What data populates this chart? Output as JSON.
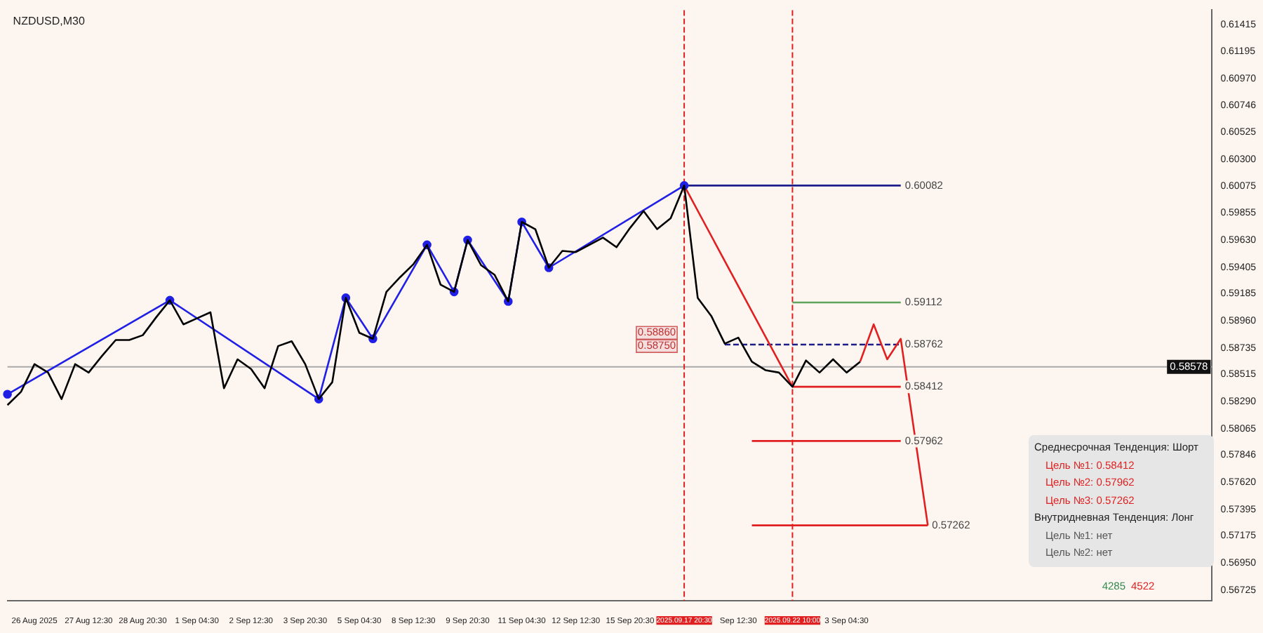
{
  "chart_data": {
    "type": "line",
    "title": "NZDUSD,M30",
    "categories": [
      null,
      null,
      "26 Aug 2025",
      null,
      null,
      null,
      "27 Aug 12:30",
      null,
      null,
      null,
      "28 Aug 20:30",
      null,
      null,
      null,
      "1 Sep 04:30",
      null,
      null,
      null,
      "2 Sep 12:30",
      null,
      null,
      null,
      "3 Sep 20:30",
      null,
      null,
      null,
      "5 Sep 04:30",
      null,
      null,
      null,
      "8 Sep 12:30",
      null,
      null,
      null,
      "9 Sep 20:30",
      null,
      null,
      null,
      "11 Sep 04:30",
      null,
      null,
      null,
      "12 Sep 12:30",
      null,
      null,
      null,
      "15 Sep 20:30",
      null,
      null,
      null,
      "2025.09.17 20:30",
      null,
      null,
      null,
      "Sep 12:30",
      null,
      null,
      null,
      "2025.09.22 10:00",
      null,
      null,
      null,
      "3 Sep 04:30",
      null,
      null,
      null,
      null,
      null,
      null,
      null,
      null,
      null,
      null,
      null,
      null,
      null,
      null,
      null,
      null,
      null,
      null,
      null,
      null,
      null,
      null,
      null,
      null,
      null,
      null,
      null
    ],
    "series": [
      {
        "color": "#000000",
        "values": [
          0.5826,
          0.5837,
          0.586,
          0.5853,
          0.5831,
          0.586,
          0.5853,
          0.5867,
          0.588,
          0.588,
          0.5884,
          0.5899,
          0.5913,
          0.5893,
          0.5898,
          0.5903,
          0.584,
          0.5864,
          0.5856,
          0.584,
          0.5875,
          0.5879,
          0.586,
          0.5831,
          0.5845,
          0.5915,
          0.5886,
          0.5881,
          0.592,
          0.5932,
          0.5943,
          0.5959,
          0.5926,
          0.592,
          0.5963,
          0.5942,
          0.5934,
          0.5912,
          0.5978,
          0.5972,
          0.594,
          0.5954,
          0.5953,
          0.5959,
          0.5965,
          0.5957,
          0.5973,
          0.5987,
          0.5972,
          0.5981,
          0.60082,
          0.5915,
          0.59,
          0.5877,
          0.5882,
          0.5862,
          0.5855,
          0.5853,
          0.58412,
          0.5863,
          0.5853,
          0.5864,
          0.5853,
          0.5862,
          null,
          null,
          null,
          null,
          null,
          null,
          null,
          null,
          null,
          null,
          null,
          null,
          null,
          null,
          null,
          null,
          null,
          null,
          null,
          null,
          null,
          null,
          null,
          null,
          null,
          null
        ]
      },
      {
        "color": "#1f1fe6",
        "marker": "circle",
        "values": [
          0.5835,
          null,
          null,
          null,
          null,
          null,
          null,
          null,
          null,
          null,
          null,
          null,
          0.5913,
          null,
          null,
          null,
          null,
          null,
          null,
          null,
          null,
          null,
          null,
          0.5831,
          null,
          0.5915,
          null,
          0.5881,
          null,
          null,
          null,
          0.5959,
          null,
          0.592,
          0.5963,
          null,
          null,
          0.5912,
          0.5978,
          null,
          0.594,
          null,
          null,
          null,
          null,
          null,
          null,
          null,
          null,
          null,
          0.60082,
          null,
          null,
          null,
          null,
          null,
          null,
          null,
          null,
          null,
          null,
          null,
          null,
          null,
          null,
          null,
          null,
          null,
          null,
          null,
          null,
          null,
          null,
          null,
          null,
          null,
          null,
          null,
          null,
          null,
          null,
          null,
          null,
          null,
          null,
          null,
          null,
          null,
          null,
          null
        ]
      },
      {
        "color": "#e02020",
        "values": [
          null,
          null,
          null,
          null,
          null,
          null,
          null,
          null,
          null,
          null,
          null,
          null,
          null,
          null,
          null,
          null,
          null,
          null,
          null,
          null,
          null,
          null,
          null,
          null,
          null,
          null,
          null,
          null,
          null,
          null,
          null,
          null,
          null,
          null,
          null,
          null,
          null,
          null,
          null,
          null,
          null,
          null,
          null,
          null,
          null,
          null,
          null,
          null,
          null,
          null,
          0.60082,
          null,
          null,
          null,
          null,
          null,
          null,
          null,
          0.58412,
          null,
          null,
          null,
          null,
          null,
          null,
          null,
          null,
          null,
          null,
          null,
          null,
          null,
          null,
          null,
          null,
          null,
          null,
          null,
          null,
          null,
          null,
          null,
          null,
          null,
          null,
          null,
          null,
          null,
          null,
          null
        ]
      },
      {
        "color": "#e02020",
        "values": [
          null,
          null,
          null,
          null,
          null,
          null,
          null,
          null,
          null,
          null,
          null,
          null,
          null,
          null,
          null,
          null,
          null,
          null,
          null,
          null,
          null,
          null,
          null,
          null,
          null,
          null,
          null,
          null,
          null,
          null,
          null,
          null,
          null,
          null,
          null,
          null,
          null,
          null,
          null,
          null,
          null,
          null,
          null,
          null,
          null,
          null,
          null,
          null,
          null,
          null,
          null,
          null,
          null,
          null,
          null,
          null,
          null,
          null,
          null,
          null,
          null,
          null,
          null,
          0.5862,
          0.5893,
          0.5864,
          0.5881,
          null,
          0.57262,
          null,
          null,
          null,
          null,
          null,
          null,
          null,
          null,
          null,
          null,
          null,
          null,
          null,
          null,
          null,
          null,
          null,
          null,
          null,
          null,
          null
        ]
      },
      {
        "color": "#1c1c8c",
        "values": [
          null,
          null,
          null,
          null,
          null,
          null,
          null,
          null,
          null,
          null,
          null,
          null,
          null,
          null,
          null,
          null,
          null,
          null,
          null,
          null,
          null,
          null,
          null,
          null,
          null,
          null,
          null,
          null,
          null,
          null,
          null,
          null,
          null,
          null,
          null,
          null,
          null,
          null,
          null,
          null,
          null,
          null,
          null,
          null,
          null,
          null,
          null,
          null,
          null,
          null,
          0.60082,
          null,
          null,
          null,
          null,
          null,
          null,
          null,
          null,
          null,
          null,
          null,
          null,
          null,
          null,
          null,
          0.60082,
          null,
          null,
          null,
          null,
          null,
          null,
          null,
          null,
          null,
          null,
          null,
          null,
          null,
          null,
          null,
          null,
          null,
          null,
          null,
          null,
          null,
          null,
          null
        ]
      },
      {
        "color": "#5fa35f",
        "values": [
          null,
          null,
          null,
          null,
          null,
          null,
          null,
          null,
          null,
          null,
          null,
          null,
          null,
          null,
          null,
          null,
          null,
          null,
          null,
          null,
          null,
          null,
          null,
          null,
          null,
          null,
          null,
          null,
          null,
          null,
          null,
          null,
          null,
          null,
          null,
          null,
          null,
          null,
          null,
          null,
          null,
          null,
          null,
          null,
          null,
          null,
          null,
          null,
          null,
          null,
          null,
          null,
          null,
          null,
          null,
          null,
          null,
          null,
          0.59112,
          null,
          null,
          null,
          null,
          null,
          null,
          null,
          0.59112,
          null,
          null,
          null,
          null,
          null,
          null,
          null,
          null,
          null,
          null,
          null,
          null,
          null,
          null,
          null,
          null,
          null,
          null,
          null,
          null,
          null,
          null,
          null
        ]
      },
      {
        "color": "#1c1c8c",
        "line_style": "dashed",
        "values": [
          null,
          null,
          null,
          null,
          null,
          null,
          null,
          null,
          null,
          null,
          null,
          null,
          null,
          null,
          null,
          null,
          null,
          null,
          null,
          null,
          null,
          null,
          null,
          null,
          null,
          null,
          null,
          null,
          null,
          null,
          null,
          null,
          null,
          null,
          null,
          null,
          null,
          null,
          null,
          null,
          null,
          null,
          null,
          null,
          null,
          null,
          null,
          null,
          null,
          null,
          null,
          null,
          null,
          0.58762,
          null,
          null,
          null,
          null,
          null,
          null,
          null,
          null,
          null,
          null,
          null,
          null,
          0.58762,
          null,
          null,
          null,
          null,
          null,
          null,
          null,
          null,
          null,
          null,
          null,
          null,
          null,
          null,
          null,
          null,
          null,
          null,
          null,
          null,
          null,
          null,
          null
        ]
      },
      {
        "color": "#e02020",
        "values": [
          null,
          null,
          null,
          null,
          null,
          null,
          null,
          null,
          null,
          null,
          null,
          null,
          null,
          null,
          null,
          null,
          null,
          null,
          null,
          null,
          null,
          null,
          null,
          null,
          null,
          null,
          null,
          null,
          null,
          null,
          null,
          null,
          null,
          null,
          null,
          null,
          null,
          null,
          null,
          null,
          null,
          null,
          null,
          null,
          null,
          null,
          null,
          null,
          null,
          null,
          null,
          null,
          null,
          null,
          null,
          null,
          null,
          null,
          0.58412,
          null,
          null,
          null,
          null,
          null,
          null,
          null,
          0.58412,
          null,
          null,
          null,
          null,
          null,
          null,
          null,
          null,
          null,
          null,
          null,
          null,
          null,
          null,
          null,
          null,
          null,
          null,
          null,
          null,
          null,
          null,
          null
        ]
      },
      {
        "color": "#e02020",
        "values": [
          null,
          null,
          null,
          null,
          null,
          null,
          null,
          null,
          null,
          null,
          null,
          null,
          null,
          null,
          null,
          null,
          null,
          null,
          null,
          null,
          null,
          null,
          null,
          null,
          null,
          null,
          null,
          null,
          null,
          null,
          null,
          null,
          null,
          null,
          null,
          null,
          null,
          null,
          null,
          null,
          null,
          null,
          null,
          null,
          null,
          null,
          null,
          null,
          null,
          null,
          null,
          null,
          null,
          null,
          null,
          0.57962,
          null,
          null,
          null,
          null,
          null,
          null,
          null,
          null,
          null,
          null,
          0.57962,
          null,
          null,
          null,
          null,
          null,
          null,
          null,
          null,
          null,
          null,
          null,
          null,
          null,
          null,
          null,
          null,
          null,
          null,
          null,
          null,
          null,
          null,
          null
        ]
      },
      {
        "color": "#e02020",
        "values": [
          null,
          null,
          null,
          null,
          null,
          null,
          null,
          null,
          null,
          null,
          null,
          null,
          null,
          null,
          null,
          null,
          null,
          null,
          null,
          null,
          null,
          null,
          null,
          null,
          null,
          null,
          null,
          null,
          null,
          null,
          null,
          null,
          null,
          null,
          null,
          null,
          null,
          null,
          null,
          null,
          null,
          null,
          null,
          null,
          null,
          null,
          null,
          null,
          null,
          null,
          null,
          null,
          null,
          null,
          null,
          0.57262,
          null,
          null,
          null,
          null,
          null,
          null,
          null,
          null,
          null,
          null,
          null,
          null,
          0.57262,
          null,
          null,
          null,
          null,
          null,
          null,
          null,
          null,
          null,
          null,
          null,
          null,
          null,
          null,
          null,
          null,
          null,
          null,
          null,
          null,
          null
        ]
      }
    ],
    "ylim": [
      0.56636,
      0.61538
    ],
    "yticks": [
      {
        "value": 0.61415,
        "label": "0.61415"
      },
      {
        "value": 0.61195,
        "label": "0.61195"
      },
      {
        "value": 0.6097,
        "label": "0.60970"
      },
      {
        "value": 0.60746,
        "label": "0.60746"
      },
      {
        "value": 0.60525,
        "label": "0.60525"
      },
      {
        "value": 0.603,
        "label": "0.60300"
      },
      {
        "value": 0.60075,
        "label": "0.60075"
      },
      {
        "value": 0.59855,
        "label": "0.59855"
      },
      {
        "value": 0.5963,
        "label": "0.59630"
      },
      {
        "value": 0.59405,
        "label": "0.59405"
      },
      {
        "value": 0.59185,
        "label": "0.59185"
      },
      {
        "value": 0.5896,
        "label": "0.58960"
      },
      {
        "value": 0.58735,
        "label": "0.58735"
      },
      {
        "value": 0.58515,
        "label": "0.58515"
      },
      {
        "value": 0.5829,
        "label": "0.58290"
      },
      {
        "value": 0.58065,
        "label": "0.58065"
      },
      {
        "value": 0.57846,
        "label": "0.57846"
      },
      {
        "value": 0.5762,
        "label": "0.57620"
      },
      {
        "value": 0.57395,
        "label": "0.57395"
      },
      {
        "value": 0.57175,
        "label": "0.57175"
      },
      {
        "value": 0.5695,
        "label": "0.56950"
      },
      {
        "value": 0.56725,
        "label": "0.56725"
      }
    ],
    "ref_lines": [
      {
        "axis": "y",
        "value": 0.58578,
        "label": "0.58578",
        "color": "#aaaaaa"
      },
      {
        "axis": "x",
        "value": "2025.09.17 20:30",
        "color": "#e02020",
        "line_style": "dashed"
      },
      {
        "axis": "x",
        "value": "2025.09.22 10:00",
        "color": "#e02020",
        "line_style": "dashed"
      }
    ],
    "annotations": [
      {
        "text": "0.60082",
        "y": 0.60082
      },
      {
        "text": "0.59112",
        "y": 0.59112
      },
      {
        "text": "0.58762",
        "y": 0.58762
      },
      {
        "text": "0.58412",
        "y": 0.58412
      },
      {
        "text": "0.57962",
        "y": 0.57962
      },
      {
        "text": "0.57262",
        "y": 0.57262
      },
      {
        "text": "0.58860",
        "y": 0.5886
      },
      {
        "text": "0.58750",
        "y": 0.5875
      },
      "Среднесрочная Тенденция: Шорт",
      "Цель №1: 0.58412",
      "Цель №2: 0.57962",
      "Цель №3: 0.57262",
      "Внутридневная Тенденция: Лонг",
      "Цель №1: нет",
      "Цель №2: нет",
      "4285",
      "4522"
    ]
  }
}
